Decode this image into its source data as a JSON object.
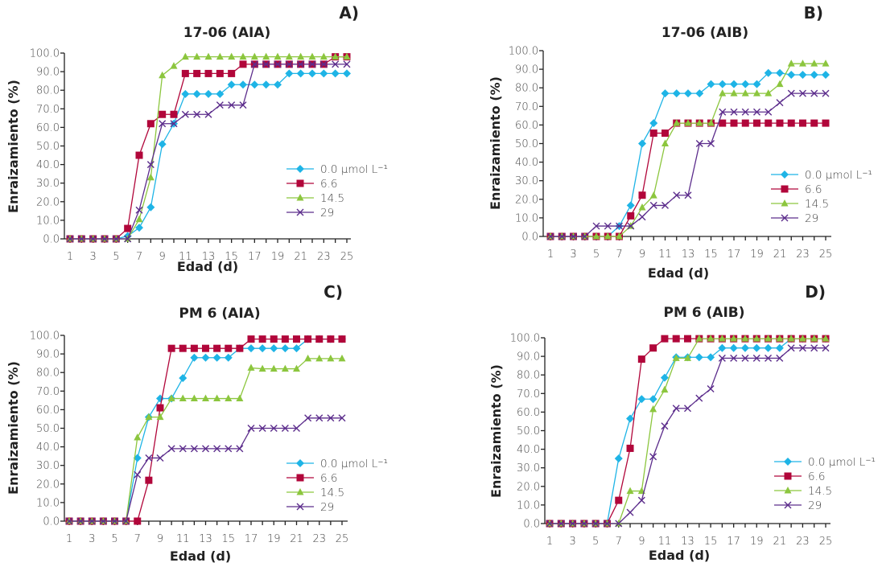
{
  "colors": {
    "s0": "#1eb4e6",
    "s1": "#b1063a",
    "s2": "#8cc63e",
    "s3": "#5c2d8c"
  },
  "chart_data": [
    {
      "panel": "A)",
      "type": "line",
      "title": "17-06 (AIA)",
      "xlabel": "Edad (d)",
      "ylabel": "Enraizamiento (%)",
      "ylim": [
        0,
        100
      ],
      "xlim": [
        1,
        25
      ],
      "yticks": [
        "0.0",
        "10.0",
        "20.0",
        "30.0",
        "40.0",
        "50.0",
        "60.0",
        "70.0",
        "80.0",
        "90.0",
        "100.0"
      ],
      "xticks": [
        "1",
        "3",
        "5",
        "7",
        "9",
        "11",
        "13",
        "15",
        "17",
        "19",
        "21",
        "23",
        "25"
      ],
      "legend_position": "right-center",
      "grid": false,
      "x": [
        1,
        2,
        3,
        4,
        5,
        6,
        7,
        8,
        9,
        10,
        11,
        12,
        13,
        14,
        15,
        16,
        17,
        18,
        19,
        20,
        21,
        22,
        23,
        24,
        25
      ],
      "series": [
        {
          "name": "0.0 µmol L⁻¹",
          "marker": "diamond",
          "values": [
            0,
            0,
            0,
            0,
            0,
            1.5,
            6,
            17,
            51,
            62,
            78,
            78,
            78,
            78,
            83,
            83,
            83,
            83,
            83,
            89,
            89,
            89,
            89,
            89,
            89
          ]
        },
        {
          "name": "6.6",
          "marker": "square",
          "values": [
            0,
            0,
            0,
            0,
            0,
            5.6,
            45,
            62,
            67,
            67,
            89,
            89,
            89,
            89,
            89,
            94,
            94,
            94,
            94,
            94,
            94,
            94,
            94,
            98,
            98
          ]
        },
        {
          "name": "14.5",
          "marker": "triangle",
          "values": [
            0,
            0,
            0,
            0,
            0,
            0,
            10.5,
            33,
            88,
            93,
            98,
            98,
            98,
            98,
            98,
            98,
            98,
            98,
            98,
            98,
            98,
            98,
            98,
            98,
            98
          ]
        },
        {
          "name": "29",
          "marker": "x",
          "values": [
            0,
            0,
            0,
            0,
            0,
            0,
            15.5,
            40,
            62,
            62,
            67,
            67,
            67,
            72,
            72,
            72,
            94,
            94,
            94,
            94,
            94,
            94,
            94,
            94,
            94
          ]
        }
      ]
    },
    {
      "panel": "B)",
      "type": "line",
      "title": "17-06 (AIB)",
      "xlabel": "Edad (d)",
      "ylabel": "Enraizamiento (%)",
      "ylim": [
        0,
        100
      ],
      "xlim": [
        1,
        25
      ],
      "yticks": [
        "0.0",
        "10.0",
        "20.0",
        "30.0",
        "40.0",
        "50.0",
        "60.0",
        "70.0",
        "80.0",
        "90.0",
        "100.0"
      ],
      "xticks": [
        "1",
        "3",
        "5",
        "7",
        "9",
        "11",
        "13",
        "15",
        "17",
        "19",
        "21",
        "23",
        "25"
      ],
      "legend_position": "right-center",
      "grid": false,
      "x": [
        1,
        2,
        3,
        4,
        5,
        6,
        7,
        8,
        9,
        10,
        11,
        12,
        13,
        14,
        15,
        16,
        17,
        18,
        19,
        20,
        21,
        22,
        23,
        24,
        25
      ],
      "series": [
        {
          "name": "0.0 µmol L⁻¹",
          "marker": "diamond",
          "values": [
            0,
            0,
            0,
            0,
            0,
            0,
            5.6,
            16.7,
            50,
            61,
            77,
            77,
            77,
            77,
            82,
            82,
            82,
            82,
            82,
            88,
            88,
            87,
            87,
            87,
            87
          ]
        },
        {
          "name": "6.6",
          "marker": "square",
          "values": [
            0,
            0,
            0,
            0,
            0,
            0,
            0,
            11.1,
            22.2,
            55.6,
            55.6,
            61,
            61,
            61,
            61,
            61,
            61,
            61,
            61,
            61,
            61,
            61,
            61,
            61,
            61
          ]
        },
        {
          "name": "14.5",
          "marker": "triangle",
          "values": [
            0,
            0,
            0,
            0,
            0,
            0,
            0,
            5.6,
            15.6,
            22,
            50,
            61,
            61,
            61,
            61,
            77,
            77,
            77,
            77,
            77,
            82,
            93,
            93,
            93,
            93
          ]
        },
        {
          "name": "29",
          "marker": "x",
          "values": [
            0,
            0,
            0,
            0,
            5.6,
            5.6,
            5.6,
            5.6,
            10.5,
            16.7,
            16.7,
            22.2,
            22.2,
            50,
            50,
            67,
            67,
            67,
            67,
            67,
            72,
            77,
            77,
            77,
            77
          ]
        }
      ]
    },
    {
      "panel": "C)",
      "type": "line",
      "title": "PM 6 (AIA)",
      "xlabel": "Edad (d)",
      "ylabel": "Enraizamiento (%)",
      "ylim": [
        0,
        100
      ],
      "xlim": [
        1,
        25
      ],
      "yticks": [
        "0.0",
        "10.0",
        "20.0",
        "30.0",
        "40.0",
        "50.0",
        "60.0",
        "70.0",
        "80.0",
        "90.0",
        "100.0"
      ],
      "xticks": [
        "1",
        "3",
        "5",
        "7",
        "9",
        "11",
        "13",
        "15",
        "17",
        "19",
        "21",
        "23",
        "25"
      ],
      "legend_position": "right-center",
      "grid": false,
      "x": [
        1,
        2,
        3,
        4,
        5,
        6,
        7,
        8,
        9,
        10,
        11,
        12,
        13,
        14,
        15,
        16,
        17,
        18,
        19,
        20,
        21,
        22,
        23,
        24,
        25
      ],
      "series": [
        {
          "name": "0.0 µmol L⁻¹",
          "marker": "diamond",
          "values": [
            0,
            0,
            0,
            0,
            0,
            0,
            34,
            56,
            66,
            66,
            77,
            88,
            88,
            88,
            88,
            93,
            93,
            93,
            93,
            93,
            93,
            98,
            98,
            98,
            98
          ]
        },
        {
          "name": "6.6",
          "marker": "square",
          "values": [
            0,
            0,
            0,
            0,
            0,
            0,
            0,
            22,
            61,
            93,
            93,
            93,
            93,
            93,
            93,
            93,
            98,
            98,
            98,
            98,
            98,
            98,
            98,
            98,
            98
          ]
        },
        {
          "name": "14.5",
          "marker": "triangle",
          "values": [
            0,
            0,
            0,
            0,
            0,
            0,
            45,
            56,
            56,
            66,
            66,
            66,
            66,
            66,
            66,
            66,
            82.5,
            82,
            82,
            82,
            82,
            87.5,
            87.5,
            87.5,
            87.5
          ]
        },
        {
          "name": "29",
          "marker": "x",
          "values": [
            0,
            0,
            0,
            0,
            0,
            0,
            25,
            34,
            34,
            39,
            39,
            39,
            39,
            39,
            39,
            39,
            50,
            50,
            50,
            50,
            50,
            55.5,
            55.5,
            55.5,
            55.5
          ]
        }
      ]
    },
    {
      "panel": "D)",
      "type": "line",
      "title": "PM 6 (AIB)",
      "xlabel": "Edad (d)",
      "ylabel": "Enraizamiento (%)",
      "ylim": [
        0,
        100
      ],
      "xlim": [
        1,
        25
      ],
      "yticks": [
        "0.0",
        "10.0",
        "20.0",
        "30.0",
        "40.0",
        "50.0",
        "60.0",
        "70.0",
        "80.0",
        "90.0",
        "100.0"
      ],
      "xticks": [
        "1",
        "3",
        "5",
        "7",
        "9",
        "11",
        "13",
        "15",
        "17",
        "19",
        "21",
        "23",
        "25"
      ],
      "legend_position": "right-center",
      "grid": false,
      "x": [
        1,
        2,
        3,
        4,
        5,
        6,
        7,
        8,
        9,
        10,
        11,
        12,
        13,
        14,
        15,
        16,
        17,
        18,
        19,
        20,
        21,
        22,
        23,
        24,
        25
      ],
      "series": [
        {
          "name": "0.0 µmol L⁻¹",
          "marker": "diamond",
          "values": [
            0,
            0,
            0,
            0,
            0,
            0,
            35,
            56.5,
            67,
            67,
            78.5,
            89.5,
            89.5,
            89.5,
            89.5,
            94.5,
            94.5,
            94.5,
            94.5,
            94.5,
            94.5,
            99.5,
            99.5,
            99.5,
            99.5
          ]
        },
        {
          "name": "6.6",
          "marker": "square",
          "values": [
            0,
            0,
            0,
            0,
            0,
            0,
            12.5,
            40.5,
            88.5,
            94.5,
            99.5,
            99.5,
            99.5,
            99.5,
            99.5,
            99.5,
            99.5,
            99.5,
            99.5,
            99.5,
            99.5,
            99.5,
            99.5,
            99.5,
            99.5
          ]
        },
        {
          "name": "14.5",
          "marker": "triangle",
          "values": [
            0,
            0,
            0,
            0,
            0,
            0,
            0,
            17.5,
            17.5,
            61.5,
            72,
            89,
            89,
            99.5,
            99.5,
            99.5,
            99.5,
            99.5,
            99.5,
            99.5,
            99.5,
            99.5,
            99.5,
            99.5,
            99.5
          ]
        },
        {
          "name": "29",
          "marker": "x",
          "values": [
            0,
            0,
            0,
            0,
            0,
            0,
            0,
            6,
            12.5,
            36,
            52.5,
            62,
            62,
            67.5,
            72.5,
            89,
            89,
            89,
            89,
            89,
            89,
            94.5,
            94.5,
            94.5,
            94.5
          ]
        }
      ]
    }
  ]
}
